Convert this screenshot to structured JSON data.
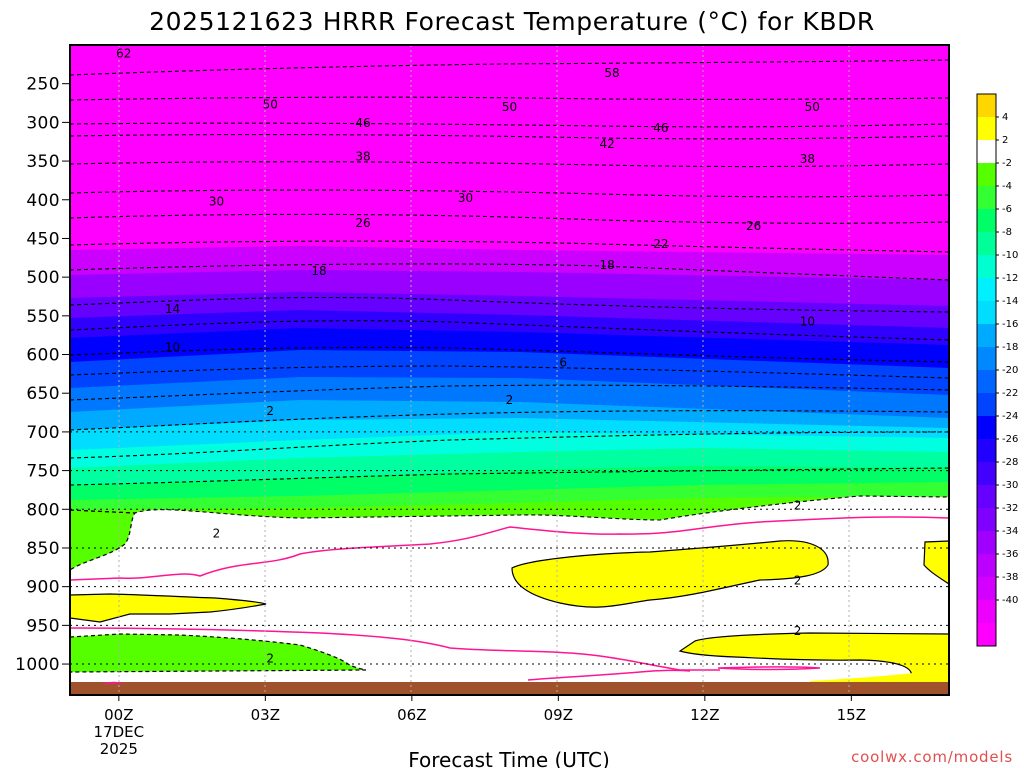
{
  "chart_data": {
    "type": "contour",
    "title": "2025121623 HRRR Forecast Temperature (°C) for KBDR",
    "xlabel": "Forecast Time (UTC)",
    "ylabel": "",
    "credit": "coolwx.com/models",
    "x_unit": "hours from 17DEC2025 00Z",
    "xlim": [
      -1,
      17
    ],
    "ylim": [
      1040,
      200
    ],
    "x_ticks": [
      {
        "value": 0,
        "label": "00Z",
        "sub1": "17DEC",
        "sub2": "2025"
      },
      {
        "value": 3,
        "label": "03Z"
      },
      {
        "value": 6,
        "label": "06Z"
      },
      {
        "value": 9,
        "label": "09Z"
      },
      {
        "value": 12,
        "label": "12Z"
      },
      {
        "value": 15,
        "label": "15Z"
      }
    ],
    "y_ticks": [
      250,
      300,
      350,
      400,
      450,
      500,
      550,
      600,
      650,
      700,
      750,
      800,
      850,
      900,
      950,
      1000
    ],
    "y_tick_labels": [
      "250",
      "300",
      "350",
      "400",
      "450",
      "500",
      "550",
      "600",
      "650",
      "700",
      "750",
      "800",
      "850",
      "900",
      "950",
      "1000"
    ],
    "grid": {
      "vertical": true,
      "horizontal_dotted_from_hpa": 700
    },
    "colorbar": {
      "placement": "right",
      "levels": [
        -42,
        -40,
        -38,
        -36,
        -34,
        -32,
        -30,
        -28,
        -26,
        -24,
        -22,
        -20,
        -18,
        -16,
        -14,
        -12,
        -10,
        -8,
        -6,
        -4,
        -2,
        2,
        4,
        6
      ],
      "colors": [
        "#ff00ff",
        "#ee00ff",
        "#d400ff",
        "#bb00ff",
        "#9f00ff",
        "#8000ff",
        "#6600ff",
        "#4200ff",
        "#2000ff",
        "#0000ff",
        "#0044ff",
        "#0066ff",
        "#0088ff",
        "#00aaff",
        "#00ddff",
        "#00f0ff",
        "#00ffd0",
        "#00ff99",
        "#00ff66",
        "#33ff33",
        "#55ff00",
        "#ffffff",
        "#ffff00",
        "#ffd700"
      ],
      "labels": [
        "4",
        "2",
        "-2",
        "-4",
        "-6",
        "-8",
        "-10",
        "-12",
        "-14",
        "-16",
        "-18",
        "-20",
        "-22",
        "-24",
        "-26",
        "-28",
        "-30",
        "-32",
        "-34",
        "-36",
        "-38",
        "-40"
      ]
    },
    "temperature_profile": {
      "pressure_hpa": [
        200,
        250,
        300,
        350,
        400,
        450,
        500,
        550,
        600,
        650,
        700,
        750,
        800,
        850,
        900,
        950,
        1000
      ],
      "temp_c": [
        -62,
        -58,
        -50,
        -40,
        -32,
        -24,
        -18,
        -13,
        -7,
        -3,
        0,
        0,
        0,
        1,
        0,
        -3,
        0
      ]
    },
    "contour_labels": [
      {
        "x": 0.1,
        "p": 211,
        "label": "62"
      },
      {
        "x": 10.1,
        "p": 236,
        "label": "58"
      },
      {
        "x": 3.1,
        "p": 277,
        "label": "50"
      },
      {
        "x": 8,
        "p": 280,
        "label": "50"
      },
      {
        "x": 14.2,
        "p": 280,
        "label": "50"
      },
      {
        "x": 5,
        "p": 301,
        "label": "46"
      },
      {
        "x": 11.1,
        "p": 307,
        "label": "46"
      },
      {
        "x": 10,
        "p": 328,
        "label": "42"
      },
      {
        "x": 5,
        "p": 344,
        "label": "38"
      },
      {
        "x": 14.1,
        "p": 347,
        "label": "38"
      },
      {
        "x": 2,
        "p": 402,
        "label": "30"
      },
      {
        "x": 7.1,
        "p": 398,
        "label": "30"
      },
      {
        "x": 5,
        "p": 430,
        "label": "26"
      },
      {
        "x": 13,
        "p": 434,
        "label": "26"
      },
      {
        "x": 11.1,
        "p": 457,
        "label": "22"
      },
      {
        "x": 4.1,
        "p": 492,
        "label": "18"
      },
      {
        "x": 10,
        "p": 484,
        "label": "18"
      },
      {
        "x": 1.1,
        "p": 541,
        "label": "14"
      },
      {
        "x": 14.1,
        "p": 557,
        "label": "10"
      },
      {
        "x": 1.1,
        "p": 591,
        "label": "10"
      },
      {
        "x": 9.1,
        "p": 610,
        "label": "6"
      },
      {
        "x": 8,
        "p": 659,
        "label": "2"
      },
      {
        "x": 3.1,
        "p": 673,
        "label": "2"
      },
      {
        "x": 2,
        "p": 831,
        "label": "2"
      },
      {
        "x": 13.9,
        "p": 795,
        "label": "2"
      },
      {
        "x": 13.9,
        "p": 892,
        "label": "2"
      },
      {
        "x": 13.9,
        "p": 957,
        "label": "2"
      },
      {
        "x": 3.1,
        "p": 993,
        "label": "2"
      }
    ]
  }
}
